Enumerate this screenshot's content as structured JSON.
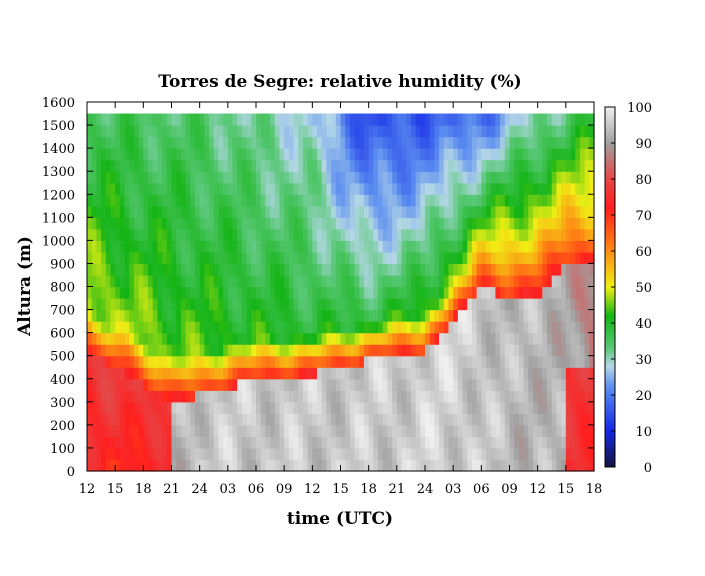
{
  "chart_data": {
    "type": "heatmap",
    "title": "Torres de Segre: relative humidity (%)",
    "xlabel": "time (UTC)",
    "ylabel": "Altura (m)",
    "x_tick_labels": [
      "12",
      "15",
      "18",
      "21",
      "24",
      "03",
      "06",
      "09",
      "12",
      "15",
      "18",
      "21",
      "24",
      "03",
      "06",
      "09",
      "12",
      "15",
      "18"
    ],
    "y_ticks": [
      0,
      100,
      200,
      300,
      400,
      500,
      600,
      700,
      800,
      900,
      1000,
      1100,
      1200,
      1300,
      1400,
      1500,
      1600
    ],
    "ylim": [
      0,
      1600
    ],
    "data_top_altitude": 1550,
    "colorbar": {
      "ticks": [
        0,
        10,
        20,
        30,
        40,
        50,
        60,
        70,
        80,
        90,
        100
      ],
      "range": [
        0,
        100
      ],
      "stops": [
        {
          "v": 0,
          "color": "#14143c"
        },
        {
          "v": 10,
          "color": "#1428e6"
        },
        {
          "v": 22,
          "color": "#5a8cf0"
        },
        {
          "v": 28,
          "color": "#b4d7e6"
        },
        {
          "v": 33,
          "color": "#5ac878"
        },
        {
          "v": 42,
          "color": "#14b414"
        },
        {
          "v": 50,
          "color": "#f0f014"
        },
        {
          "v": 62,
          "color": "#ff7814"
        },
        {
          "v": 72,
          "color": "#ff1e1e"
        },
        {
          "v": 80,
          "color": "#e64646"
        },
        {
          "v": 90,
          "color": "#a0a0a0"
        },
        {
          "v": 100,
          "color": "#f0f0f0"
        }
      ]
    },
    "cell_size_hours": 0.5,
    "cell_size_m": 50,
    "field": {
      "description": "relative humidity (%) as a function of time (hours since first 12 UTC) and altitude (m)",
      "surface_layer": [
        {
          "hour": 0,
          "top": 520,
          "rh": 76
        },
        {
          "hour": 3,
          "top": 450,
          "rh": 74
        },
        {
          "hour": 6,
          "top": 380,
          "rh": 78
        },
        {
          "hour": 9,
          "top": 300,
          "rh": 92
        },
        {
          "hour": 12,
          "top": 330,
          "rh": 95
        },
        {
          "hour": 18,
          "top": 400,
          "rh": 95
        },
        {
          "hour": 24,
          "top": 420,
          "rh": 95
        },
        {
          "hour": 30,
          "top": 480,
          "rh": 95
        },
        {
          "hour": 36,
          "top": 520,
          "rh": 96
        },
        {
          "hour": 39,
          "top": 650,
          "rh": 96
        },
        {
          "hour": 42,
          "top": 790,
          "rh": 95
        },
        {
          "hour": 45,
          "top": 760,
          "rh": 93
        },
        {
          "hour": 48,
          "top": 760,
          "rh": 93
        },
        {
          "hour": 51,
          "top": 900,
          "rh": 92
        },
        {
          "hour": 54,
          "top": 920,
          "rh": 85
        }
      ],
      "upper_layer": [
        {
          "hour": 0,
          "rh_low": 50,
          "rh_high": 36
        },
        {
          "hour": 12,
          "rh_low": 44,
          "rh_high": 34
        },
        {
          "hour": 24,
          "rh_low": 40,
          "rh_high": 28
        },
        {
          "hour": 30,
          "rh_low": 40,
          "rh_high": 14
        },
        {
          "hour": 36,
          "rh_low": 44,
          "rh_high": 16
        },
        {
          "hour": 42,
          "rh_low": 58,
          "rh_high": 18
        },
        {
          "hour": 48,
          "rh_low": 62,
          "rh_high": 30
        },
        {
          "hour": 54,
          "rh_low": 62,
          "rh_high": 38
        }
      ]
    }
  }
}
